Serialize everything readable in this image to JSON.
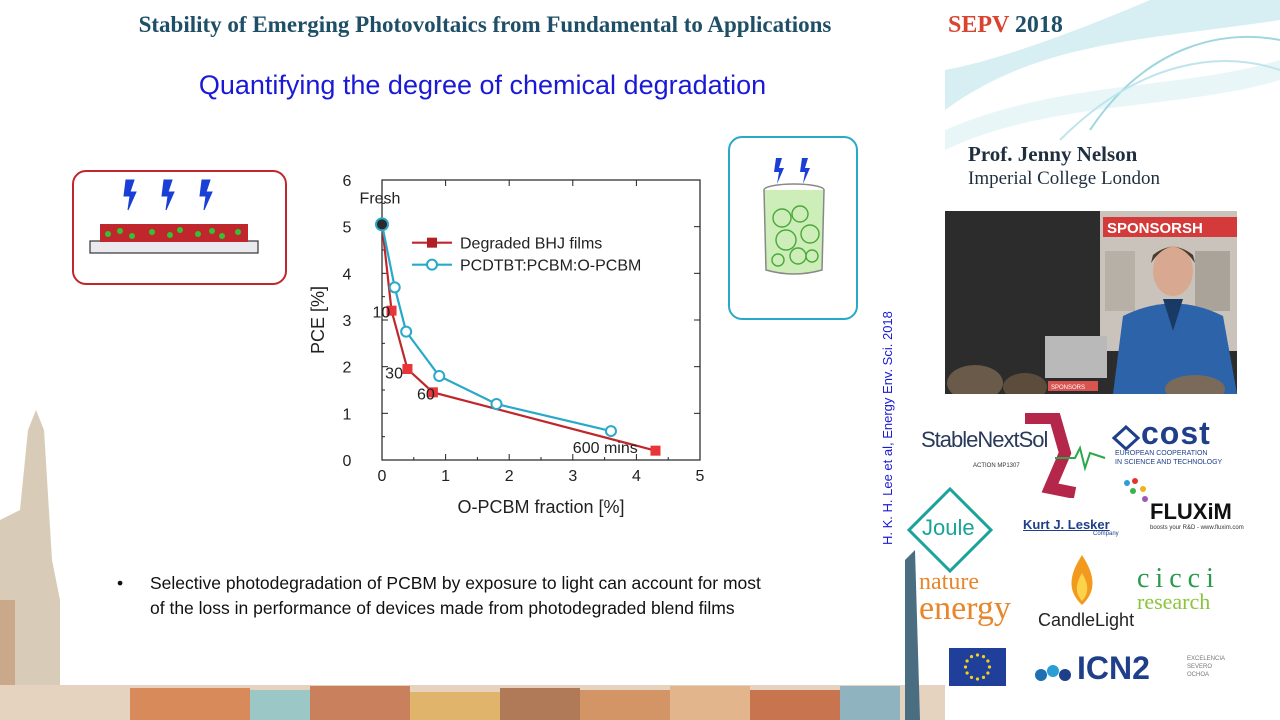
{
  "header": {
    "title": "Stability of Emerging Photovoltaics from Fundamental to Applications",
    "badge_a": "SEPV",
    "badge_b": "2018"
  },
  "slide": {
    "title": "Quantifying the degree of chemical degradation",
    "citation": "H. K. H. Lee et al,  Energy  Env. Sci. 2018",
    "bullet_symbol": "•",
    "bullet_line1": "Selective photodegradation of PCBM by exposure to light can account for most",
    "bullet_line2": "of the loss in performance of devices made from photodegraded blend films"
  },
  "chart_data": {
    "type": "line",
    "xlabel": "O-PCBM fraction [%]",
    "ylabel": "PCE [%]",
    "xlim": [
      0,
      5
    ],
    "ylim": [
      0,
      6
    ],
    "x_ticks": [
      "0",
      "1",
      "2",
      "3",
      "4",
      "5"
    ],
    "y_ticks": [
      "0",
      "1",
      "2",
      "3",
      "4",
      "5",
      "6"
    ],
    "series": [
      {
        "name": "Degraded BHJ films",
        "color": "#c0272d",
        "marker": "square",
        "x": [
          0,
          0.15,
          0.4,
          0.8,
          4.3
        ],
        "y": [
          5.05,
          3.2,
          1.95,
          1.45,
          0.2
        ]
      },
      {
        "name": "PCDTBT:PCBM:O-PCBM",
        "color": "#28a9c9",
        "marker": "circle",
        "x": [
          0,
          0.2,
          0.38,
          0.9,
          1.8,
          3.6
        ],
        "y": [
          5.05,
          3.7,
          2.75,
          1.8,
          1.2,
          0.62
        ]
      }
    ],
    "annotations": [
      {
        "text": "Fresh",
        "x": 0.0,
        "y": 5.5
      },
      {
        "text": "10",
        "x": -0.15,
        "y": 3.05
      },
      {
        "text": "30",
        "x": 0.05,
        "y": 1.75
      },
      {
        "text": "60",
        "x": 0.55,
        "y": 1.3
      },
      {
        "text": "600 mins",
        "x": 3.0,
        "y": 0.15
      }
    ],
    "legend_position": "top-right",
    "grid": false
  },
  "speaker": {
    "name": "Prof. Jenny Nelson",
    "institution": "Imperial College London",
    "video_sign": "SPONSORSH",
    "podium_sign": "SPONSORS"
  },
  "sponsors": {
    "stablenextsol": "StableNextSol",
    "stablenextsol_sub": "ACTION MP1307",
    "cost": "cost",
    "cost_sub1": "EUROPEAN COOPERATION",
    "cost_sub2": "IN SCIENCE AND TECHNOLOGY",
    "fluxim": "FLUXiM",
    "fluxim_sub": "boosts your R&D - www.fluxim.com",
    "joule": "Joule",
    "kurt": "Kurt J. Lesker",
    "kurt_sub": "Company",
    "nature": "nature",
    "energy": "energy",
    "candlelight": "CandleLight",
    "cicci": "cicci",
    "research": "research",
    "icn2": "ICN2",
    "severo": "EXCELENCIA SEVERO OCHOA"
  }
}
